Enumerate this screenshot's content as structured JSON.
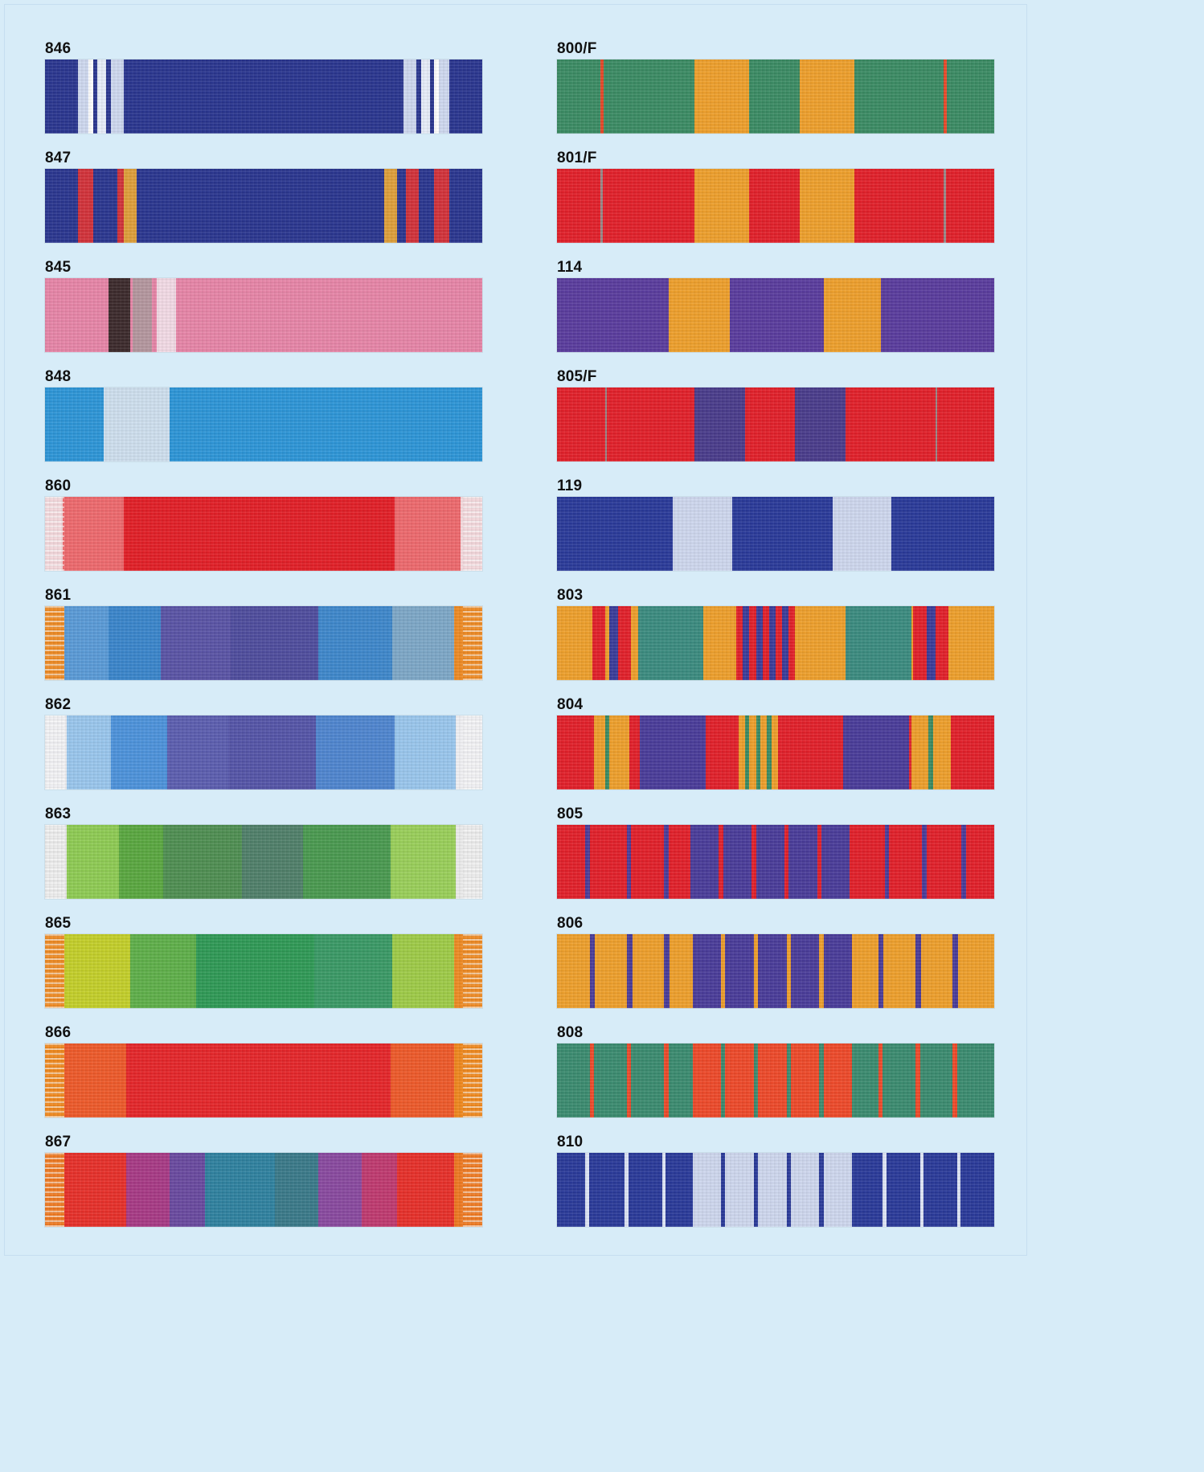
{
  "left_column": [
    {
      "code": "846",
      "base": "#2a3690",
      "fringe": false,
      "stripes": [
        [
          "#cfd9f0",
          0.075,
          0.025
        ],
        [
          "#ffffff",
          0.1,
          0.01
        ],
        [
          "#2a3690",
          0.11,
          0.01
        ],
        [
          "#e8eefa",
          0.12,
          0.02
        ],
        [
          "#2a3690",
          0.14,
          0.01
        ],
        [
          "#cfd9f0",
          0.15,
          0.03
        ],
        [
          "#cfd9f0",
          0.82,
          0.03
        ],
        [
          "#2a3690",
          0.85,
          0.01
        ],
        [
          "#e8eefa",
          0.86,
          0.02
        ],
        [
          "#2a3690",
          0.88,
          0.01
        ],
        [
          "#ffffff",
          0.89,
          0.01
        ],
        [
          "#cfd9f0",
          0.9,
          0.025
        ]
      ]
    },
    {
      "code": "847",
      "base": "#2a3690",
      "fringe": false,
      "stripes": [
        [
          "#d3323a",
          0.075,
          0.035
        ],
        [
          "#d3323a",
          0.165,
          0.03
        ],
        [
          "#e0a03a",
          0.18,
          0.03
        ],
        [
          "#e0a03a",
          0.775,
          0.03
        ],
        [
          "#d3323a",
          0.825,
          0.03
        ],
        [
          "#d3323a",
          0.89,
          0.035
        ]
      ]
    },
    {
      "code": "845",
      "base": "#e886a8",
      "fringe": false,
      "stripes": [
        [
          "#3c2a2c",
          0.145,
          0.05
        ],
        [
          "#b5979f",
          0.2,
          0.045
        ],
        [
          "#f3dbe6",
          0.255,
          0.045
        ]
      ]
    },
    {
      "code": "848",
      "base": "#2d96d8",
      "fringe": false,
      "stripes": [
        [
          "#cfe0ef",
          0.135,
          0.15
        ]
      ]
    },
    {
      "code": "860",
      "base": "#e31f27",
      "fringe": true,
      "fringe_color": "#f4d8dc",
      "stripes": [
        [
          "#f4d8dc",
          0.0,
          0.04
        ],
        [
          "#ef6a6e",
          0.04,
          0.14
        ],
        [
          "#ef6a6e",
          0.8,
          0.15
        ],
        [
          "#f4d8dc",
          0.95,
          0.05
        ]
      ]
    },
    {
      "code": "861",
      "base": "#3f4fae",
      "fringe": true,
      "fringe_color": "#ef8b24",
      "stripes": [
        [
          "#ef8b24",
          0.0,
          0.045
        ],
        [
          "#5a9bd8",
          0.045,
          0.1
        ],
        [
          "#3a86cc",
          0.145,
          0.12
        ],
        [
          "#5a54a6",
          0.265,
          0.16
        ],
        [
          "#4f4d9e",
          0.425,
          0.2
        ],
        [
          "#3e88cc",
          0.625,
          0.17
        ],
        [
          "#7ea8c8",
          0.795,
          0.14
        ],
        [
          "#ef8b24",
          0.935,
          0.065
        ]
      ]
    },
    {
      "code": "862",
      "base": "#4a64b8",
      "fringe": true,
      "fringe_color": "#f1f1f4",
      "stripes": [
        [
          "#f1f1f4",
          0.0,
          0.05
        ],
        [
          "#9ac7ee",
          0.05,
          0.1
        ],
        [
          "#4d93dc",
          0.15,
          0.13
        ],
        [
          "#5c5eb0",
          0.28,
          0.14
        ],
        [
          "#5555a8",
          0.42,
          0.2
        ],
        [
          "#4f86d0",
          0.62,
          0.18
        ],
        [
          "#9ac7ee",
          0.8,
          0.14
        ],
        [
          "#f1f1f4",
          0.94,
          0.06
        ]
      ]
    },
    {
      "code": "863",
      "base": "#4e9748",
      "fringe": true,
      "fringe_color": "#ececec",
      "stripes": [
        [
          "#ececec",
          0.0,
          0.05
        ],
        [
          "#8fcc54",
          0.05,
          0.12
        ],
        [
          "#5aa840",
          0.17,
          0.1
        ],
        [
          "#4f8f52",
          0.27,
          0.18
        ],
        [
          "#50806a",
          0.45,
          0.14
        ],
        [
          "#4a9a50",
          0.59,
          0.2
        ],
        [
          "#9ad05a",
          0.79,
          0.15
        ],
        [
          "#ececec",
          0.94,
          0.06
        ]
      ]
    },
    {
      "code": "865",
      "base": "#2f9a56",
      "fringe": true,
      "fringe_color": "#ef8b24",
      "stripes": [
        [
          "#ef8b24",
          0.0,
          0.045
        ],
        [
          "#c4d02a",
          0.045,
          0.15
        ],
        [
          "#5fb04a",
          0.195,
          0.15
        ],
        [
          "#2f9a56",
          0.345,
          0.27
        ],
        [
          "#3a9a66",
          0.615,
          0.18
        ],
        [
          "#9fcc48",
          0.795,
          0.14
        ],
        [
          "#ef8b24",
          0.935,
          0.065
        ]
      ]
    },
    {
      "code": "866",
      "base": "#e6262a",
      "fringe": true,
      "fringe_color": "#f0891e",
      "stripes": [
        [
          "#f0891e",
          0.0,
          0.045
        ],
        [
          "#ef5a2a",
          0.045,
          0.14
        ],
        [
          "#ef5a2a",
          0.79,
          0.145
        ],
        [
          "#f0891e",
          0.935,
          0.065
        ]
      ]
    },
    {
      "code": "867",
      "base": "#3b7c8a",
      "fringe": true,
      "fringe_color": "#ef7a22",
      "stripes": [
        [
          "#ef7a22",
          0.0,
          0.045
        ],
        [
          "#e8302a",
          0.045,
          0.14
        ],
        [
          "#a83a86",
          0.185,
          0.1
        ],
        [
          "#6a4aa0",
          0.285,
          0.08
        ],
        [
          "#2f82a0",
          0.365,
          0.16
        ],
        [
          "#3a7a8a",
          0.525,
          0.1
        ],
        [
          "#8a4aa0",
          0.625,
          0.1
        ],
        [
          "#c03a70",
          0.725,
          0.08
        ],
        [
          "#e8302a",
          0.805,
          0.13
        ],
        [
          "#ef7a22",
          0.935,
          0.065
        ]
      ]
    }
  ],
  "right_column": [
    {
      "code": "800/F",
      "base": "#3b8c64",
      "fringe": false,
      "stripes": [
        [
          "#e84a2a",
          0.1,
          0.006
        ],
        [
          "#efa02c",
          0.315,
          0.125
        ],
        [
          "#efa02c",
          0.555,
          0.125
        ],
        [
          "#e84a2a",
          0.885,
          0.006
        ]
      ]
    },
    {
      "code": "801/F",
      "base": "#e3202a",
      "fringe": false,
      "stripes": [
        [
          "#9a8a8a",
          0.1,
          0.004
        ],
        [
          "#efa02c",
          0.315,
          0.125
        ],
        [
          "#efa02c",
          0.555,
          0.125
        ],
        [
          "#9a8a8a",
          0.885,
          0.004
        ]
      ]
    },
    {
      "code": "114",
      "base": "#5a3c9e",
      "fringe": false,
      "stripes": [
        [
          "#efa02c",
          0.255,
          0.14
        ],
        [
          "#efa02c",
          0.61,
          0.13
        ]
      ]
    },
    {
      "code": "805/F",
      "base": "#e3202a",
      "fringe": false,
      "stripes": [
        [
          "#9a8a8a",
          0.11,
          0.004
        ],
        [
          "#4a3c8c",
          0.315,
          0.115
        ],
        [
          "#4a3c8c",
          0.545,
          0.115
        ],
        [
          "#9a8a8a",
          0.865,
          0.004
        ]
      ]
    },
    {
      "code": "119",
      "base": "#2a3a9a",
      "fringe": false,
      "stripes": [
        [
          "#cfd8ef",
          0.265,
          0.135
        ],
        [
          "#cfd8ef",
          0.63,
          0.135
        ]
      ]
    },
    {
      "code": "803",
      "base": "#efa02c",
      "fringe": false,
      "stripes": [
        [
          "#e3202a",
          0.08,
          0.03
        ],
        [
          "#3a3c9a",
          0.12,
          0.02
        ],
        [
          "#e3202a",
          0.14,
          0.03
        ],
        [
          "#3b8c80",
          0.185,
          0.15
        ],
        [
          "#e3202a",
          0.41,
          0.015
        ],
        [
          "#3a3c9a",
          0.425,
          0.015
        ],
        [
          "#e3202a",
          0.44,
          0.015
        ],
        [
          "#3a3c9a",
          0.455,
          0.015
        ],
        [
          "#e3202a",
          0.47,
          0.015
        ],
        [
          "#3a3c9a",
          0.485,
          0.015
        ],
        [
          "#e3202a",
          0.5,
          0.015
        ],
        [
          "#3a3c9a",
          0.515,
          0.015
        ],
        [
          "#e3202a",
          0.53,
          0.015
        ],
        [
          "#3b8c80",
          0.66,
          0.15
        ],
        [
          "#e3202a",
          0.815,
          0.03
        ],
        [
          "#3a3c9a",
          0.845,
          0.02
        ],
        [
          "#e3202a",
          0.865,
          0.03
        ]
      ]
    },
    {
      "code": "804",
      "base": "#e3202a",
      "fringe": false,
      "stripes": [
        [
          "#efa02c",
          0.085,
          0.04
        ],
        [
          "#3b8c64",
          0.11,
          0.01
        ],
        [
          "#efa02c",
          0.125,
          0.04
        ],
        [
          "#4a3c9a",
          0.19,
          0.15
        ],
        [
          "#efa02c",
          0.415,
          0.015
        ],
        [
          "#3b8c64",
          0.43,
          0.01
        ],
        [
          "#efa02c",
          0.44,
          0.015
        ],
        [
          "#3b8c64",
          0.455,
          0.01
        ],
        [
          "#efa02c",
          0.465,
          0.015
        ],
        [
          "#3b8c64",
          0.48,
          0.01
        ],
        [
          "#efa02c",
          0.49,
          0.015
        ],
        [
          "#4a3c9a",
          0.655,
          0.15
        ],
        [
          "#efa02c",
          0.81,
          0.04
        ],
        [
          "#3b8c64",
          0.85,
          0.01
        ],
        [
          "#efa02c",
          0.86,
          0.04
        ]
      ]
    },
    {
      "code": "805",
      "base": "#e3202a",
      "fringe": false,
      "stripes": [
        [
          "#4a3c9a",
          0.065,
          0.01
        ],
        [
          "#4a3c9a",
          0.16,
          0.01
        ],
        [
          "#4a3c9a",
          0.245,
          0.01
        ],
        [
          "#4a3c9a",
          0.305,
          0.065
        ],
        [
          "#4a3c9a",
          0.38,
          0.065
        ],
        [
          "#4a3c9a",
          0.455,
          0.065
        ],
        [
          "#4a3c9a",
          0.53,
          0.065
        ],
        [
          "#4a3c9a",
          0.605,
          0.065
        ],
        [
          "#4a3c9a",
          0.75,
          0.01
        ],
        [
          "#4a3c9a",
          0.835,
          0.01
        ],
        [
          "#4a3c9a",
          0.925,
          0.01
        ]
      ]
    },
    {
      "code": "806",
      "base": "#efa02c",
      "fringe": false,
      "stripes": [
        [
          "#4a3c9a",
          0.075,
          0.012
        ],
        [
          "#4a3c9a",
          0.16,
          0.012
        ],
        [
          "#4a3c9a",
          0.245,
          0.012
        ],
        [
          "#4a3c9a",
          0.31,
          0.065
        ],
        [
          "#4a3c9a",
          0.385,
          0.065
        ],
        [
          "#4a3c9a",
          0.46,
          0.065
        ],
        [
          "#4a3c9a",
          0.535,
          0.065
        ],
        [
          "#4a3c9a",
          0.61,
          0.065
        ],
        [
          "#4a3c9a",
          0.735,
          0.012
        ],
        [
          "#4a3c9a",
          0.82,
          0.012
        ],
        [
          "#4a3c9a",
          0.905,
          0.012
        ]
      ]
    },
    {
      "code": "808",
      "base": "#3b8c70",
      "fringe": false,
      "stripes": [
        [
          "#ef4a2a",
          0.075,
          0.01
        ],
        [
          "#ef4a2a",
          0.16,
          0.01
        ],
        [
          "#ef4a2a",
          0.245,
          0.01
        ],
        [
          "#ef4a2a",
          0.31,
          0.065
        ],
        [
          "#ef4a2a",
          0.385,
          0.065
        ],
        [
          "#ef4a2a",
          0.46,
          0.065
        ],
        [
          "#ef4a2a",
          0.535,
          0.065
        ],
        [
          "#ef4a2a",
          0.61,
          0.065
        ],
        [
          "#ef4a2a",
          0.735,
          0.01
        ],
        [
          "#ef4a2a",
          0.82,
          0.01
        ],
        [
          "#ef4a2a",
          0.905,
          0.01
        ]
      ]
    },
    {
      "code": "810",
      "base": "#2a3a9a",
      "fringe": false,
      "stripes": [
        [
          "#dfe6f6",
          0.065,
          0.008
        ],
        [
          "#dfe6f6",
          0.155,
          0.008
        ],
        [
          "#dfe6f6",
          0.24,
          0.008
        ],
        [
          "#cfd8ef",
          0.31,
          0.065
        ],
        [
          "#cfd8ef",
          0.385,
          0.065
        ],
        [
          "#cfd8ef",
          0.46,
          0.065
        ],
        [
          "#cfd8ef",
          0.535,
          0.065
        ],
        [
          "#cfd8ef",
          0.61,
          0.065
        ],
        [
          "#dfe6f6",
          0.745,
          0.008
        ],
        [
          "#dfe6f6",
          0.83,
          0.008
        ],
        [
          "#dfe6f6",
          0.915,
          0.008
        ]
      ]
    }
  ]
}
